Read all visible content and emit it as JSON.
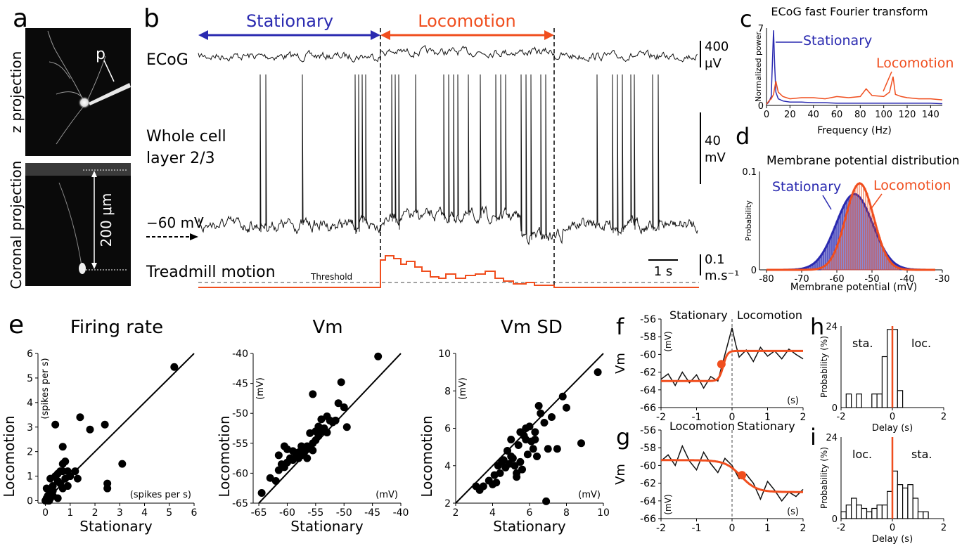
{
  "colors": {
    "stationary": "#2a2ab0",
    "locomotion": "#f04e1e",
    "trace": "#111111"
  },
  "panels": {
    "a": "a",
    "b": "b",
    "c": "c",
    "d": "d",
    "e": "e",
    "f": "f",
    "g": "g",
    "h": "h",
    "i": "i"
  },
  "panel_a": {
    "top_label": "z projection",
    "bottom_label": "Coronal projection",
    "pipette_label": "p",
    "scale_label": "200 μm"
  },
  "panel_b": {
    "stationary": "Stationary",
    "locomotion": "Locomotion",
    "ecog": "ECoG",
    "ecog_scale": "400",
    "ecog_scale_unit": "μV",
    "whole_cell_1": "Whole cell",
    "whole_cell_2": "layer 2/3",
    "vm_scale": "40",
    "vm_scale_unit": "mV",
    "rest": "−60 mV",
    "treadmill": "Treadmill motion",
    "threshold": "Threshold",
    "time_scale": "1 s",
    "speed_scale": "0.1",
    "speed_unit": "m.s⁻¹"
  },
  "chart_data": [
    {
      "id": "c",
      "type": "line",
      "title": "ECoG fast Fourier transform",
      "xlabel": "Frequency (Hz)",
      "ylabel": "Normalized power",
      "xlim": [
        0,
        150
      ],
      "ylim": [
        0,
        7
      ],
      "xticks": [
        0,
        20,
        40,
        60,
        80,
        100,
        120,
        140
      ],
      "yticks": [
        0,
        7
      ],
      "series": [
        {
          "name": "Stationary",
          "x": [
            0,
            2,
            4,
            6,
            7,
            8,
            10,
            14,
            20,
            30,
            40,
            50,
            60,
            70,
            80,
            90,
            100,
            110,
            120,
            130,
            140,
            150
          ],
          "values": [
            0.1,
            0.3,
            0.8,
            6.8,
            3.5,
            1.2,
            0.6,
            0.4,
            0.3,
            0.3,
            0.25,
            0.25,
            0.2,
            0.2,
            0.2,
            0.2,
            0.2,
            0.2,
            0.2,
            0.2,
            0.2,
            0.15
          ]
        },
        {
          "name": "Locomotion",
          "x": [
            0,
            2,
            4,
            6,
            8,
            10,
            14,
            20,
            30,
            40,
            50,
            60,
            70,
            80,
            85,
            90,
            100,
            105,
            108,
            110,
            115,
            120,
            130,
            140,
            150
          ],
          "values": [
            0.1,
            0.4,
            0.6,
            1.0,
            2.2,
            1.2,
            0.8,
            0.6,
            0.7,
            0.7,
            0.6,
            0.8,
            0.7,
            0.8,
            1.5,
            0.9,
            0.8,
            1.2,
            2.6,
            1.0,
            0.8,
            0.7,
            0.6,
            0.6,
            0.5
          ]
        }
      ]
    },
    {
      "id": "d",
      "type": "bar",
      "title": "Membrane potential distribution",
      "xlabel": "Membrane potential (mV)",
      "ylabel": "Probability",
      "xlim": [
        -82,
        -30
      ],
      "ylim": [
        0,
        0.1
      ],
      "xticks": [
        -80,
        -70,
        -60,
        -50,
        -40,
        -30
      ],
      "yticks": [
        0,
        0.1
      ],
      "series": [
        {
          "name": "Stationary",
          "mean": -55,
          "sd": 5.2,
          "peak": 0.077
        },
        {
          "name": "Locomotion",
          "mean": -53.5,
          "sd": 4.0,
          "peak": 0.088
        }
      ]
    },
    {
      "id": "e1",
      "type": "scatter",
      "title": "Firing rate",
      "xlabel": "Stationary",
      "ylabel": "Locomotion",
      "xunit": "(spikes per s)",
      "yunit": "(spikes per s)",
      "xlim": [
        -0.3,
        6
      ],
      "ylim": [
        -0.1,
        6
      ],
      "xticks": [
        0,
        1,
        2,
        3,
        4,
        5,
        6
      ],
      "yticks": [
        0,
        1,
        2,
        3,
        4,
        5,
        6
      ],
      "x": [
        0,
        0.05,
        0.1,
        0.15,
        0.2,
        0.05,
        0.3,
        0.1,
        0.2,
        0.4,
        0.5,
        0.3,
        0.6,
        0.7,
        0.8,
        0.1,
        0.2,
        0.5,
        0.6,
        0.7,
        0.9,
        1.0,
        0.7,
        0.8,
        1.2,
        1.4,
        1.8,
        2.4,
        2.5,
        2.5,
        3.1,
        1.3,
        0.7,
        0.4,
        0.5,
        5.2,
        0.3,
        0.9
      ],
      "y": [
        0,
        0.1,
        0.2,
        0,
        0.3,
        0.5,
        0.6,
        0.05,
        0.9,
        1.0,
        0.8,
        0.2,
        1.2,
        1.5,
        1.6,
        0,
        0.1,
        1.1,
        0.7,
        1.2,
        1.2,
        1.0,
        2.2,
        0.9,
        1.2,
        3.4,
        2.9,
        3.1,
        0.7,
        0.5,
        1.5,
        0.9,
        0.5,
        3.1,
        0.1,
        5.45,
        0.4,
        0.6
      ]
    },
    {
      "id": "e2",
      "type": "scatter",
      "title": "Vm",
      "xlabel": "Stationary",
      "ylabel": "Locomotion",
      "xunit": "(mV)",
      "yunit": "(mV)",
      "xlim": [
        -66,
        -40
      ],
      "ylim": [
        -65,
        -40
      ],
      "xticks": [
        -65,
        -60,
        -55,
        -50,
        -45,
        -40
      ],
      "yticks": [
        -65,
        -60,
        -55,
        -50,
        -45,
        -40
      ],
      "x": [
        -64.5,
        -63,
        -62,
        -61.5,
        -61,
        -60.5,
        -60,
        -60,
        -59.5,
        -59,
        -59,
        -58.5,
        -58,
        -58,
        -57.5,
        -57.5,
        -57,
        -57,
        -56.5,
        -56.5,
        -56,
        -56,
        -55.5,
        -55.5,
        -55,
        -55,
        -54.5,
        -54.5,
        -54,
        -54,
        -53.5,
        -53,
        -53,
        -52.5,
        -52,
        -51.5,
        -51,
        -50.5,
        -50,
        -49.5,
        -55.5,
        -56.5,
        -60.5,
        -61.5,
        -44
      ],
      "y": [
        -63.3,
        -60.8,
        -61.3,
        -59.5,
        -58.5,
        -59,
        -58.2,
        -56,
        -57.5,
        -56.3,
        -57.8,
        -56.7,
        -57.5,
        -56.5,
        -57,
        -55.5,
        -56.5,
        -55.8,
        -57.5,
        -56,
        -55.7,
        -53.3,
        -56.2,
        -55,
        -54.5,
        -53,
        -53.8,
        -52.2,
        -53,
        -51,
        -52.5,
        -50.5,
        -53.2,
        -51.2,
        -51.5,
        -51.2,
        -48.3,
        -44.8,
        -49,
        -52.3,
        -46.8,
        -55.5,
        -55.5,
        -57,
        -40.5
      ]
    },
    {
      "id": "e3",
      "type": "scatter",
      "title": "Vm SD",
      "xlabel": "Stationary",
      "ylabel": "Locomotion",
      "xunit": "(mV)",
      "yunit": "(mV)",
      "xlim": [
        2,
        10
      ],
      "ylim": [
        2,
        10
      ],
      "xticks": [
        2,
        4,
        6,
        8,
        10
      ],
      "yticks": [
        2,
        4,
        6,
        8,
        10
      ],
      "x": [
        3.1,
        3.3,
        3.5,
        3.8,
        4.0,
        4.1,
        4.3,
        4.4,
        4.5,
        4.6,
        4.7,
        4.8,
        4.9,
        5.0,
        5.0,
        5.1,
        5.2,
        5.3,
        5.4,
        5.5,
        5.5,
        5.6,
        5.7,
        5.8,
        5.9,
        6.0,
        6.1,
        6.2,
        6.3,
        6.4,
        6.5,
        6.6,
        6.8,
        7.0,
        7.2,
        7.5,
        7.8,
        8.0,
        8.8,
        9.7,
        6.9,
        4.2,
        5.3,
        6.3,
        5.8
      ],
      "y": [
        2.9,
        2.7,
        2.9,
        3.2,
        3.0,
        3.5,
        4.0,
        3.6,
        4.2,
        4.3,
        3.9,
        4.8,
        4.1,
        5.4,
        4.5,
        4.4,
        4.0,
        3.6,
        5.1,
        5.8,
        4.2,
        3.8,
        5.6,
        5.4,
        4.6,
        6.1,
        5.3,
        4.9,
        5.8,
        4.5,
        7.2,
        6.8,
        6.3,
        4.9,
        6.6,
        4.9,
        7.7,
        7.1,
        5.2,
        9.0,
        2.1,
        3.1,
        3.4,
        5.4,
        6.0
      ]
    },
    {
      "id": "f",
      "type": "line",
      "title": "",
      "labels": [
        "Stationary",
        "Locomotion"
      ],
      "ylabel": "Vm",
      "yunit": "(mV)",
      "xunit": "(s)",
      "xlim": [
        -2,
        2
      ],
      "ylim": [
        -66,
        -56
      ],
      "xticks": [
        -2,
        -1,
        0,
        1,
        2
      ],
      "yticks": [
        -56,
        -58,
        -60,
        -62,
        -64,
        -66
      ],
      "series": [
        {
          "name": "trace",
          "x": [
            -2,
            -1.8,
            -1.6,
            -1.4,
            -1.2,
            -1.0,
            -0.8,
            -0.6,
            -0.4,
            -0.3,
            -0.2,
            -0.1,
            0,
            0.1,
            0.2,
            0.4,
            0.6,
            0.8,
            1.0,
            1.2,
            1.4,
            1.6,
            1.8,
            2.0
          ],
          "values": [
            -62.8,
            -62.2,
            -63.5,
            -62.0,
            -63.2,
            -62.3,
            -63.8,
            -62.5,
            -63.0,
            -61.5,
            -60.0,
            -58.5,
            -57.0,
            -58.8,
            -60.3,
            -59.5,
            -60.8,
            -59.2,
            -60.2,
            -59.6,
            -60.5,
            -59.4,
            -60.0,
            -60.5
          ]
        },
        {
          "name": "fit",
          "step_from": -63,
          "step_to": -59.6,
          "t0": -0.25,
          "tau": 0.06,
          "marker_x": -0.3,
          "marker_y": -61.1
        }
      ]
    },
    {
      "id": "g",
      "type": "line",
      "title": "",
      "labels": [
        "Locomotion",
        "Stationary"
      ],
      "ylabel": "Vm",
      "yunit": "(mV)",
      "xunit": "(s)",
      "xlim": [
        -2,
        2
      ],
      "ylim": [
        -66,
        -56
      ],
      "xticks": [
        -2,
        -1,
        0,
        1,
        2
      ],
      "yticks": [
        -56,
        -58,
        -60,
        -62,
        -64,
        -66
      ],
      "series": [
        {
          "name": "trace",
          "x": [
            -2,
            -1.8,
            -1.6,
            -1.4,
            -1.2,
            -1.0,
            -0.8,
            -0.6,
            -0.4,
            -0.2,
            0,
            0.2,
            0.4,
            0.6,
            0.8,
            1.0,
            1.2,
            1.4,
            1.6,
            1.8,
            2.0
          ],
          "values": [
            -59.5,
            -58.8,
            -60.0,
            -57.8,
            -59.5,
            -60.5,
            -58.5,
            -59.8,
            -60.8,
            -59.2,
            -60.0,
            -61.5,
            -61.0,
            -62.0,
            -63.8,
            -61.8,
            -62.8,
            -64.0,
            -63.0,
            -63.5,
            -62.7
          ]
        },
        {
          "name": "fit",
          "step_from": -59.4,
          "step_to": -63,
          "t0": 0.25,
          "tau": 0.22,
          "marker_x": 0.28,
          "marker_y": -61.1
        }
      ]
    },
    {
      "id": "h",
      "type": "bar",
      "title": "",
      "labels": [
        "sta.",
        "loc."
      ],
      "xlabel": "Delay (s)",
      "ylabel": "Probability (%)",
      "xlim": [
        -2,
        2
      ],
      "ylim": [
        0,
        24
      ],
      "xticks": [
        -2,
        0,
        2
      ],
      "yticks": [
        0,
        24
      ],
      "bin_width": 0.2,
      "bins": [
        -1.9,
        -1.7,
        -1.5,
        -1.3,
        -1.1,
        -0.9,
        -0.7,
        -0.5,
        -0.3,
        -0.1,
        0.1,
        0.3,
        0.5,
        0.7,
        0.9
      ],
      "values": [
        0,
        4,
        0,
        4,
        0,
        0,
        4,
        4,
        15,
        23,
        23,
        5,
        0,
        0,
        0
      ]
    },
    {
      "id": "i",
      "type": "bar",
      "title": "",
      "labels": [
        "loc.",
        "sta."
      ],
      "xlabel": "Delay (s)",
      "ylabel": "Probability (%)",
      "xlim": [
        -2,
        2
      ],
      "ylim": [
        0,
        24
      ],
      "xticks": [
        -2,
        0,
        2
      ],
      "yticks": [
        0,
        24
      ],
      "bin_width": 0.2,
      "bins": [
        -1.9,
        -1.7,
        -1.5,
        -1.3,
        -1.1,
        -0.9,
        -0.7,
        -0.5,
        -0.3,
        -0.1,
        0.1,
        0.3,
        0.5,
        0.7,
        0.9,
        1.1,
        1.3,
        1.5
      ],
      "values": [
        2,
        4,
        6,
        4,
        3,
        2,
        3,
        4,
        4,
        8,
        14,
        10,
        9,
        10,
        6,
        2,
        2,
        0
      ]
    }
  ]
}
